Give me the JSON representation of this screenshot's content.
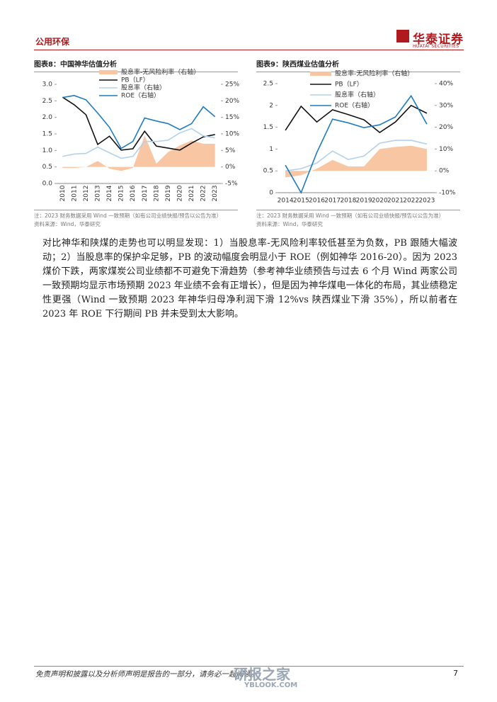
{
  "header": {
    "section": "公用环保",
    "brand": "华泰证券",
    "brand_en": "HUATAI SECURITIES"
  },
  "chart_data": [
    {
      "type": "line",
      "title": "图表8：中国神华估值分析",
      "note": "注：2023 财务数据采用 Wind 一致预期（如有公司业绩快报/预告以公告为准）",
      "source": "资料来源：Wind，华泰研究",
      "categories": [
        "2010",
        "2011",
        "2012",
        "2013",
        "2014",
        "2015",
        "2016",
        "2017",
        "2018",
        "2019",
        "2020",
        "2021",
        "2022",
        "2023"
      ],
      "series": [
        {
          "name": "股息率-无风险利率（右轴）",
          "type": "area",
          "color": "#f8c6a2",
          "axis": "y2",
          "values": [
            -0.3,
            -0.3,
            0,
            1.8,
            -0.5,
            -1.2,
            -0.3,
            9.5,
            1,
            4.5,
            6.5,
            8,
            7,
            7
          ]
        },
        {
          "name": "PB（LF）",
          "color": "#111111",
          "values": [
            2.61,
            2.38,
            2.08,
            1.18,
            1.43,
            1.01,
            1.05,
            1.58,
            1.13,
            1.07,
            1.01,
            1.22,
            1.41,
            1.48
          ]
        },
        {
          "name": "股息率（右轴）",
          "color": "#b3d1ec",
          "axis": "y2",
          "values": [
            3.2,
            3.9,
            4.1,
            6,
            4.3,
            2.6,
            3.2,
            7.7,
            7.7,
            8.1,
            10.3,
            11.6,
            9.4,
            8.8
          ]
        },
        {
          "name": "ROE（右轴）",
          "color": "#1f7bc0",
          "axis": "y2",
          "values": [
            21,
            21.6,
            20.3,
            16.3,
            12,
            5.6,
            7.7,
            14.8,
            13.9,
            13.1,
            11.3,
            13.1,
            18.2,
            15.2
          ]
        }
      ],
      "ylim": [
        0,
        3
      ],
      "yticks": [
        {
          "value": 0,
          "label": "0.0"
        },
        0.5,
        {
          "value": 1,
          "label": "1.0"
        },
        1.5,
        {
          "value": 2,
          "label": "2.0"
        },
        2.5,
        {
          "value": 3,
          "label": "3.0"
        }
      ],
      "y2lim": [
        -5,
        25
      ],
      "y2ticks": [
        {
          "value": -5,
          "label": "-5%"
        },
        {
          "value": 0,
          "label": "0%"
        },
        {
          "value": 5,
          "label": "5%"
        },
        {
          "value": 10,
          "label": "10%"
        },
        {
          "value": 15,
          "label": "15%"
        },
        {
          "value": 20,
          "label": "20%"
        },
        {
          "value": 25,
          "label": "25%"
        }
      ],
      "legend": "upper left"
    },
    {
      "type": "line",
      "title": "图表9：陕西煤业估值分析",
      "note": "注：2023 财务数据采用 Wind 一致预期（如有公司业绩快报/预告以公告为准）",
      "source": "资料来源：Wind，华泰研究",
      "categories": [
        "2014",
        "2015",
        "2016",
        "2017",
        "2018",
        "2019",
        "2020",
        "2021",
        "2022",
        "2023"
      ],
      "series": [
        {
          "name": "股息率-无风险利率（右轴）",
          "type": "area",
          "color": "#f8c6a2",
          "axis": "y2",
          "values": [
            -3,
            -2,
            1,
            5,
            2,
            2,
            10,
            11,
            11.5,
            10
          ]
        },
        {
          "name": "PB（LF）",
          "color": "#111111",
          "values": [
            1.43,
            1.98,
            1.62,
            1.9,
            1.79,
            1.67,
            1.38,
            1.62,
            2,
            1.82
          ]
        },
        {
          "name": "股息率（右轴）",
          "color": "#b3d1ec",
          "axis": "y2",
          "values": [
            0,
            1,
            3.6,
            9.1,
            5.2,
            6.8,
            12.7,
            14,
            14,
            12.3
          ]
        },
        {
          "name": "ROE（右轴）",
          "color": "#1f7bc0",
          "axis": "y2",
          "values": [
            2.6,
            -10,
            8.4,
            23.7,
            22,
            19.8,
            21.1,
            24.7,
            34.4,
            21.4
          ]
        }
      ],
      "ylim": [
        0,
        2.5
      ],
      "yticks": [
        0,
        0.5,
        1,
        1.5,
        2,
        2.5
      ],
      "y2lim": [
        -10,
        40
      ],
      "y2ticks": [
        {
          "value": -10,
          "label": "-10%"
        },
        {
          "value": 0,
          "label": "0%"
        },
        {
          "value": 10,
          "label": "10%"
        },
        {
          "value": 20,
          "label": "20%"
        },
        {
          "value": 30,
          "label": "30%"
        },
        {
          "value": 40,
          "label": "40%"
        }
      ],
      "legend": "upper left"
    }
  ],
  "body": {
    "paragraph": "对比神华和陕煤的走势也可以明显发现：1）当股息率-无风险利率较低甚至为负数，PB 跟随大幅波动；2）当股息率的保护伞足够，PB 的波动幅度会明显小于 ROE（例如神华 2016-20）。因为 2023 煤价下跌，两家煤炭公司业绩都不可避免下滑趋势（参考神华业绩预告与过去 6 个月 Wind 两家公司一致预期均显示市场预期 2023 年业绩不会有正增长），但是因为神华煤电一体化的布局，其业绩稳定性更强（Wind 一致预期 2023 年神华归母净利润下滑 12%vs 陕西煤业下滑 35%），所以前者在 2023 年 ROE 下行期间 PB 并未受到太大影响。"
  },
  "footer": {
    "disclaimer": "免责声明和披露以及分析师声明是报告的一部分，请务必一起阅读。",
    "page": "7"
  },
  "watermark": {
    "name": "研报之家",
    "site": "YBLOOK.COM"
  }
}
